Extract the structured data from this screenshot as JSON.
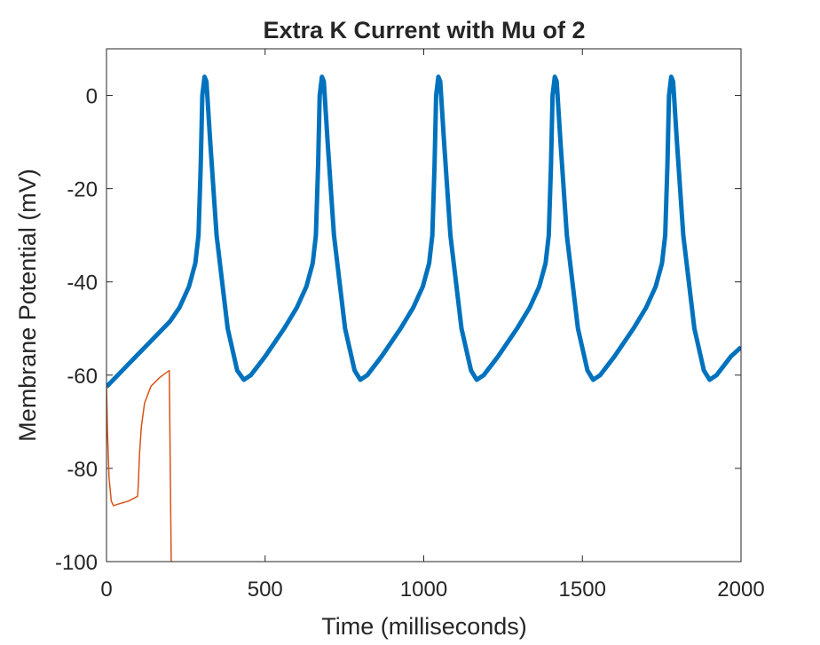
{
  "chart_data": {
    "type": "line",
    "title": "Extra K Current with Mu of 2",
    "xlabel": "Time (milliseconds)",
    "ylabel": "Membrane Potential (mV)",
    "xlim": [
      0,
      2000
    ],
    "xticks": [
      0,
      500,
      1000,
      1500,
      2000
    ],
    "ylim": [
      -100,
      10
    ],
    "yticks": [
      -100,
      -80,
      -60,
      -40,
      -20,
      0
    ],
    "grid": false,
    "series": [
      {
        "color": "#0072BD",
        "width": 5,
        "x": [
          0,
          50,
          100,
          150,
          200,
          230,
          260,
          280,
          290,
          297,
          302,
          309,
          315,
          327,
          347,
          382,
          412,
          433,
          455,
          500,
          560,
          600,
          630,
          650,
          660,
          667,
          672,
          679,
          685,
          697,
          717,
          752,
          782,
          800,
          822,
          867,
          927,
          967,
          997,
          1017,
          1027,
          1034,
          1039,
          1046,
          1052,
          1064,
          1084,
          1119,
          1149,
          1167,
          1189,
          1234,
          1294,
          1334,
          1364,
          1384,
          1394,
          1401,
          1406,
          1413,
          1419,
          1431,
          1451,
          1486,
          1516,
          1534,
          1556,
          1601,
          1661,
          1701,
          1731,
          1751,
          1761,
          1768,
          1773,
          1780,
          1786,
          1798,
          1818,
          1853,
          1883,
          1901,
          1923,
          1968,
          2000
        ],
        "values": [
          -62.5,
          -59,
          -55.5,
          -52,
          -48.5,
          -45.5,
          -41,
          -36,
          -30,
          -15,
          0,
          4,
          3,
          -10,
          -30,
          -50,
          -59,
          -61,
          -60,
          -56,
          -50,
          -45.5,
          -41,
          -36,
          -30,
          -15,
          0,
          4,
          3,
          -10,
          -30,
          -50,
          -59,
          -61,
          -60,
          -56,
          -50,
          -45.5,
          -41,
          -36,
          -30,
          -15,
          0,
          4,
          3,
          -10,
          -30,
          -50,
          -59,
          -61,
          -60,
          -56,
          -50,
          -45.5,
          -41,
          -36,
          -30,
          -15,
          0,
          4,
          3,
          -10,
          -30,
          -50,
          -59,
          -61,
          -60,
          -56,
          -50,
          -45.5,
          -41,
          -36,
          -30,
          -15,
          0,
          4,
          3,
          -10,
          -30,
          -50,
          -59,
          -61,
          -60,
          -56,
          -54
        ]
      },
      {
        "color": "#D95319",
        "width": 1.5,
        "x": [
          0,
          3,
          8,
          15,
          22,
          40,
          70,
          98,
          100,
          104,
          110,
          120,
          140,
          168,
          198,
          204
        ],
        "values": [
          -62,
          -72,
          -82,
          -87,
          -88,
          -87.6,
          -87,
          -86,
          -84,
          -77,
          -71,
          -66,
          -62.4,
          -60.5,
          -59,
          -100
        ]
      }
    ]
  }
}
